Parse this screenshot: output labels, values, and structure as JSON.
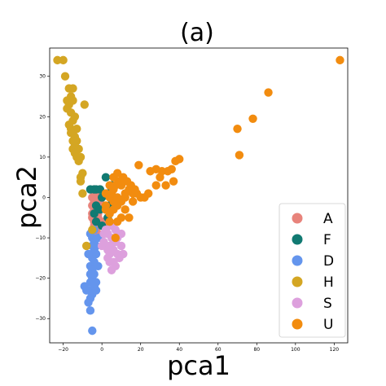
{
  "chart_data": {
    "type": "scatter",
    "title": "(a)",
    "xlabel": "pca1",
    "ylabel": "pca2",
    "xlim": [
      -27,
      127
    ],
    "ylim": [
      -36,
      37
    ],
    "xticks": [
      -20,
      0,
      20,
      40,
      60,
      80,
      100,
      120
    ],
    "yticks": [
      -30,
      -20,
      -10,
      0,
      10,
      20,
      30
    ],
    "grid": false,
    "legend": "bottom-right",
    "series": [
      {
        "name": "A",
        "color": "#e8837b",
        "points": [
          [
            -5,
            0
          ],
          [
            -4,
            -1
          ],
          [
            -3,
            -2
          ],
          [
            -4,
            -3
          ],
          [
            -3,
            -4
          ],
          [
            -2,
            -5
          ],
          [
            -4,
            -6
          ],
          [
            -5,
            -4
          ],
          [
            -2,
            -2
          ],
          [
            -1,
            -1
          ],
          [
            -3,
            1
          ],
          [
            -5,
            -5
          ],
          [
            -4,
            -7
          ],
          [
            -2,
            -7
          ],
          [
            -1,
            -6
          ],
          [
            -3,
            -8
          ],
          [
            -2,
            -9
          ],
          [
            0,
            -6
          ],
          [
            1,
            -7
          ],
          [
            -2,
            -4
          ],
          [
            -5,
            -2
          ],
          [
            -4,
            2
          ],
          [
            -1,
            2
          ],
          [
            -2,
            0
          ]
        ]
      },
      {
        "name": "F",
        "color": "#117a72",
        "points": [
          [
            -6,
            2
          ],
          [
            -4,
            2
          ],
          [
            -3,
            2
          ],
          [
            -1,
            2
          ],
          [
            5,
            3
          ],
          [
            2,
            5
          ],
          [
            -3,
            -2
          ],
          [
            -4,
            -4
          ],
          [
            -3,
            -6
          ],
          [
            0,
            -7
          ],
          [
            2,
            -3
          ],
          [
            3,
            -5
          ],
          [
            4,
            -2
          ],
          [
            0,
            0
          ],
          [
            -1,
            -3
          ],
          [
            5,
            -2
          ],
          [
            3,
            1
          ]
        ]
      },
      {
        "name": "D",
        "color": "#6495ed",
        "points": [
          [
            -5,
            -10
          ],
          [
            -4,
            -11
          ],
          [
            -5,
            -12
          ],
          [
            -4,
            -13
          ],
          [
            -3,
            -14
          ],
          [
            -5,
            -15
          ],
          [
            -4,
            -16
          ],
          [
            -6,
            -17
          ],
          [
            -5,
            -18
          ],
          [
            -6,
            -19
          ],
          [
            -5,
            -20
          ],
          [
            -6,
            -21
          ],
          [
            -4,
            -22
          ],
          [
            -7,
            -23
          ],
          [
            -5,
            -24
          ],
          [
            -6,
            -25
          ],
          [
            -4,
            -22
          ],
          [
            -9,
            -22
          ],
          [
            -8,
            -23
          ],
          [
            -7,
            -26
          ],
          [
            -6,
            -28
          ],
          [
            -3,
            -21
          ],
          [
            -3,
            -23
          ],
          [
            -2,
            -17
          ],
          [
            -4,
            -8
          ],
          [
            -6,
            -9
          ],
          [
            -7,
            -14
          ],
          [
            -3,
            -12
          ],
          [
            -2,
            -10
          ],
          [
            -4,
            -19
          ],
          [
            -5,
            -33
          ]
        ]
      },
      {
        "name": "H",
        "color": "#d4a623",
        "points": [
          [
            -23,
            34
          ],
          [
            -20,
            34
          ],
          [
            -19,
            30
          ],
          [
            -17,
            27
          ],
          [
            -15,
            27
          ],
          [
            -16,
            25
          ],
          [
            -18,
            24
          ],
          [
            -17,
            23
          ],
          [
            -15,
            24
          ],
          [
            -18,
            22
          ],
          [
            -16,
            21
          ],
          [
            -14,
            20
          ],
          [
            -15,
            19
          ],
          [
            -17,
            18
          ],
          [
            -16,
            17
          ],
          [
            -13,
            17
          ],
          [
            -15,
            16
          ],
          [
            -14,
            15
          ],
          [
            -16,
            16
          ],
          [
            -15,
            14
          ],
          [
            -13,
            14
          ],
          [
            -14,
            13
          ],
          [
            -15,
            12
          ],
          [
            -12,
            12
          ],
          [
            -14,
            11
          ],
          [
            -13,
            10
          ],
          [
            -11,
            10
          ],
          [
            -12,
            9
          ],
          [
            -9,
            23
          ],
          [
            -10,
            6
          ],
          [
            -11,
            5
          ],
          [
            -11,
            4
          ],
          [
            -10,
            1
          ],
          [
            -8,
            -12
          ],
          [
            -5,
            -8
          ]
        ]
      },
      {
        "name": "S",
        "color": "#dda0dd",
        "points": [
          [
            3,
            -9
          ],
          [
            5,
            -10
          ],
          [
            7,
            -11
          ],
          [
            4,
            -12
          ],
          [
            6,
            -13
          ],
          [
            8,
            -14
          ],
          [
            2,
            -12
          ],
          [
            1,
            -11
          ],
          [
            3,
            -15
          ],
          [
            6,
            -16
          ],
          [
            5,
            -18
          ],
          [
            7,
            -17
          ],
          [
            9,
            -15
          ],
          [
            4,
            -14
          ],
          [
            0,
            -12
          ],
          [
            2,
            -8
          ],
          [
            10,
            -12
          ],
          [
            11,
            -14
          ],
          [
            8,
            -10
          ],
          [
            3,
            -13
          ],
          [
            6,
            -11
          ],
          [
            1,
            -9
          ],
          [
            5,
            -7
          ],
          [
            7,
            -8
          ],
          [
            10,
            -9
          ],
          [
            4,
            -16
          ]
        ]
      },
      {
        "name": "U",
        "color": "#f28c0f",
        "points": [
          [
            123,
            34
          ],
          [
            86,
            26
          ],
          [
            78,
            19.5
          ],
          [
            70,
            17
          ],
          [
            71,
            10.5
          ],
          [
            40,
            9.5
          ],
          [
            38,
            9
          ],
          [
            36,
            7
          ],
          [
            34,
            6.5
          ],
          [
            31,
            6.5
          ],
          [
            28,
            7
          ],
          [
            25,
            6.5
          ],
          [
            30,
            5
          ],
          [
            33,
            3
          ],
          [
            37,
            4
          ],
          [
            28,
            3
          ],
          [
            24,
            1
          ],
          [
            18,
            1
          ],
          [
            16,
            1
          ],
          [
            14,
            2
          ],
          [
            12,
            0
          ],
          [
            10,
            -1
          ],
          [
            8,
            -2
          ],
          [
            6,
            -1
          ],
          [
            4,
            0
          ],
          [
            2,
            1
          ],
          [
            5,
            1
          ],
          [
            7,
            3
          ],
          [
            9,
            4
          ],
          [
            11,
            5
          ],
          [
            13,
            4
          ],
          [
            15,
            3
          ],
          [
            17,
            2
          ],
          [
            19,
            8
          ],
          [
            8,
            0
          ],
          [
            6,
            -3
          ],
          [
            4,
            -4
          ],
          [
            2,
            -3
          ],
          [
            10,
            -5
          ],
          [
            12,
            -3
          ],
          [
            14,
            -5
          ],
          [
            8,
            -6
          ],
          [
            4,
            -6
          ],
          [
            2,
            -2
          ],
          [
            6,
            2
          ],
          [
            4,
            3
          ],
          [
            6,
            5
          ],
          [
            8,
            6
          ],
          [
            10,
            3
          ],
          [
            12,
            1
          ],
          [
            16,
            -1
          ],
          [
            20,
            0
          ],
          [
            22,
            0
          ],
          [
            7,
            -10
          ]
        ]
      }
    ]
  }
}
